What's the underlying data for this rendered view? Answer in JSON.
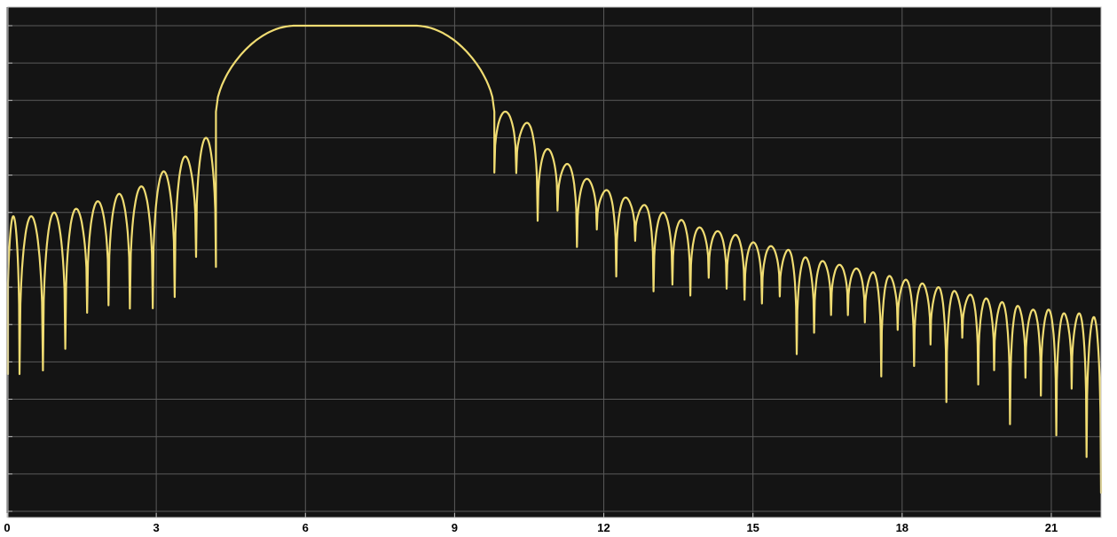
{
  "chart_data": {
    "type": "line",
    "title": "",
    "xlabel": "",
    "ylabel": "",
    "xlim": [
      0,
      22
    ],
    "ylim": [
      -130,
      0
    ],
    "x_ticks": [
      0,
      3,
      6,
      9,
      12,
      15,
      18,
      21
    ],
    "x_tick_labels": [
      "0",
      "3",
      "6",
      "9",
      "12",
      "15",
      "18",
      "21"
    ],
    "y_gridlines": [
      0,
      -10,
      -20,
      -30,
      -40,
      -50,
      -60,
      -70,
      -80,
      -90,
      -100,
      -110,
      -120,
      -130
    ],
    "y_scale": "dB",
    "grid": true,
    "legend": "none",
    "colors": {
      "background": "#141414",
      "grid": "#5a5a5a",
      "trace": "#f0dc72",
      "axis_text": "#000000",
      "frame": "#bfbfbf"
    },
    "series": [
      {
        "passband": [
          5.8,
          8.2
        ],
        "passband_level": 0,
        "edges": [
          4.2,
          9.8
        ],
        "left_sidelobes": {
          "nulls": [
            0.0,
            0.25,
            0.72,
            1.17,
            1.61,
            2.04,
            2.47,
            2.93,
            3.37,
            3.8,
            4.2
          ],
          "peaks": [
            -51,
            -51,
            -50,
            -49,
            -47,
            -45,
            -43,
            -39,
            -35,
            -30,
            -23
          ],
          "null_depths": [
            -95,
            -94,
            -88,
            -78,
            -76,
            -77,
            -77,
            -74,
            -63,
            -66
          ]
        },
        "right_sidelobes": {
          "nulls": [
            9.8,
            10.24,
            10.67,
            11.07,
            11.46,
            11.86,
            12.25,
            12.63,
            13.0,
            13.38,
            13.74,
            14.11,
            14.47,
            14.83,
            15.18,
            15.54,
            15.88,
            16.23,
            16.57,
            16.91,
            17.25,
            17.58,
            17.91,
            18.24,
            18.57,
            18.89,
            19.21,
            19.53,
            19.85,
            20.17,
            20.48,
            20.79,
            21.1,
            21.41,
            21.71,
            22.0
          ],
          "peaks": [
            -23,
            -26,
            -33,
            -37,
            -41,
            -44,
            -46,
            -48,
            -50,
            -52,
            -54,
            -55,
            -56,
            -58,
            -59,
            -60,
            -62,
            -63,
            -64,
            -65,
            -66,
            -67,
            -68,
            -69,
            -70,
            -71,
            -72,
            -73,
            -74,
            -75,
            -76,
            -76,
            -77,
            -77,
            -78
          ],
          "null_depths": [
            -40,
            -53,
            -50,
            -60,
            -55,
            -68,
            -58,
            -72,
            -70,
            -73,
            -68,
            -71,
            -74,
            -75,
            -73,
            -89,
            -83,
            -78,
            -78,
            -80,
            -95,
            -82,
            -92,
            -86,
            -102,
            -84,
            -97,
            -93,
            -108,
            -95,
            -100,
            -111,
            -98,
            -117,
            -127
          ]
        }
      }
    ]
  }
}
